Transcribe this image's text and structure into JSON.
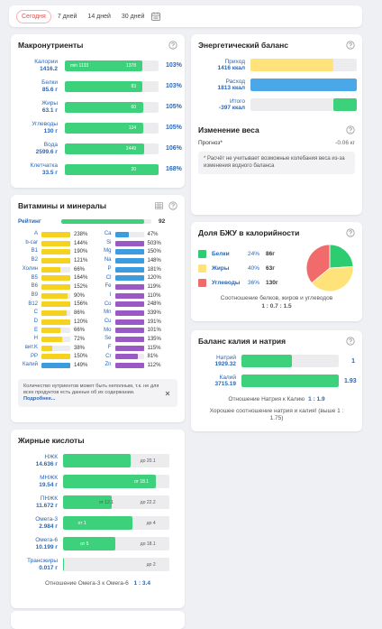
{
  "tabs": {
    "items": [
      "Сегодня",
      "7 дней",
      "14 дней",
      "30 дней"
    ],
    "active": 0
  },
  "macronutrients": {
    "title": "Макронутриенты",
    "rows": [
      {
        "name": "Калории",
        "amount": "1416.2",
        "inner_left": "min 1133",
        "inner_right": "1378",
        "percent": {
          "value": 103,
          "label": "103%"
        }
      },
      {
        "name": "Белки",
        "amount": "85.6 г",
        "inner_right": "83",
        "percent": {
          "value": 103,
          "label": "103%"
        }
      },
      {
        "name": "Жиры",
        "amount": "63.1 г",
        "inner_right": "60",
        "percent": {
          "value": 105,
          "label": "105%"
        }
      },
      {
        "name": "Углеводы",
        "amount": "130 г",
        "inner_right": "124",
        "percent": {
          "value": 105,
          "label": "105%"
        }
      },
      {
        "name": "Вода",
        "amount": "2599.6 г",
        "inner_right": "2449",
        "percent": {
          "value": 106,
          "label": "106%"
        }
      },
      {
        "name": "Клетчатка",
        "amount": "33.5 г",
        "inner_right": "20",
        "percent": {
          "value": 168,
          "label": "168%"
        }
      }
    ]
  },
  "vitamins": {
    "title": "Витамины и минералы",
    "rating": {
      "name": "Рейтинг",
      "value": 92,
      "color": "#3dd17c"
    },
    "left": [
      {
        "name": "A",
        "value": 238,
        "label": "238%",
        "color": "#f5d21f"
      },
      {
        "name": "b-car",
        "value": 144,
        "label": "144%",
        "color": "#f5d21f"
      },
      {
        "name": "B1",
        "value": 190,
        "label": "190%",
        "color": "#f5d21f"
      },
      {
        "name": "B2",
        "value": 121,
        "label": "121%",
        "color": "#f5d21f"
      },
      {
        "name": "Холин",
        "value": 66,
        "label": "66%",
        "color": "#f5d21f"
      },
      {
        "name": "B5",
        "value": 164,
        "label": "164%",
        "color": "#f5d21f"
      },
      {
        "name": "B6",
        "value": 152,
        "label": "152%",
        "color": "#f5d21f"
      },
      {
        "name": "B9",
        "value": 90,
        "label": "90%",
        "color": "#f5d21f"
      },
      {
        "name": "B12",
        "value": 156,
        "label": "156%",
        "color": "#f5d21f"
      },
      {
        "name": "C",
        "value": 86,
        "label": "86%",
        "color": "#f5d21f"
      },
      {
        "name": "D",
        "value": 120,
        "label": "120%",
        "color": "#f5d21f"
      },
      {
        "name": "E",
        "value": 66,
        "label": "66%",
        "color": "#f5d21f"
      },
      {
        "name": "H",
        "value": 72,
        "label": "72%",
        "color": "#f5d21f"
      },
      {
        "name": "вит.K",
        "value": 38,
        "label": "38%",
        "color": "#f5d21f"
      },
      {
        "name": "PP",
        "value": 150,
        "label": "150%",
        "color": "#f5d21f"
      },
      {
        "name": "Калий",
        "value": 149,
        "label": "149%",
        "color": "#3b9de0"
      }
    ],
    "right": [
      {
        "name": "Ca",
        "value": 47,
        "label": "47%",
        "color": "#3b9de0"
      },
      {
        "name": "Si",
        "value": 503,
        "label": "503%",
        "color": "#9b59c6"
      },
      {
        "name": "Mg",
        "value": 150,
        "label": "150%",
        "color": "#3b9de0"
      },
      {
        "name": "Na",
        "value": 148,
        "label": "148%",
        "color": "#3b9de0"
      },
      {
        "name": "P",
        "value": 181,
        "label": "181%",
        "color": "#3b9de0"
      },
      {
        "name": "Cl",
        "value": 120,
        "label": "120%",
        "color": "#3b9de0"
      },
      {
        "name": "Fe",
        "value": 119,
        "label": "119%",
        "color": "#9b59c6"
      },
      {
        "name": "I",
        "value": 110,
        "label": "110%",
        "color": "#9b59c6"
      },
      {
        "name": "Co",
        "value": 248,
        "label": "248%",
        "color": "#9b59c6"
      },
      {
        "name": "Mn",
        "value": 339,
        "label": "339%",
        "color": "#9b59c6"
      },
      {
        "name": "Cu",
        "value": 191,
        "label": "191%",
        "color": "#9b59c6"
      },
      {
        "name": "Mo",
        "value": 101,
        "label": "101%",
        "color": "#9b59c6"
      },
      {
        "name": "Se",
        "value": 135,
        "label": "135%",
        "color": "#9b59c6"
      },
      {
        "name": "F",
        "value": 115,
        "label": "115%",
        "color": "#9b59c6"
      },
      {
        "name": "Cr",
        "value": 81,
        "label": "81%",
        "color": "#9b59c6"
      },
      {
        "name": "Zn",
        "value": 112,
        "label": "112%",
        "color": "#9b59c6"
      }
    ],
    "note": "Количество нутриентов может быть неполным, т.к. не для всех продуктов есть данные об их содержании.",
    "note_link": "Подробнее..."
  },
  "fatty_acids": {
    "title": "Жирные кислоты",
    "rows": [
      {
        "name": "НЖК",
        "amount": {
          "value": 14.636,
          "label": "14.636 г"
        },
        "max": {
          "value": 20.1,
          "label": "до 20.1"
        }
      },
      {
        "name": "МНЖК",
        "amount": {
          "value": 19.54,
          "label": "19.54 г"
        },
        "min": {
          "value": 18.1,
          "label": "от 18.1"
        }
      },
      {
        "name": "ПНЖК",
        "amount": {
          "value": 11.672,
          "label": "11.672 г"
        },
        "min": {
          "value": 12.1,
          "label": "от 12.1"
        },
        "max": {
          "value": 22.2,
          "label": "до 22.2"
        }
      },
      {
        "name": "Омега-3",
        "amount": {
          "value": 2.984,
          "label": "2.984 г"
        },
        "min": {
          "value": 1,
          "label": "от 1"
        },
        "max": {
          "value": 4,
          "label": "до 4"
        }
      },
      {
        "name": "Омега-6",
        "amount": {
          "value": 10.199,
          "label": "10.199 г"
        },
        "min": {
          "value": 5,
          "label": "от 5"
        },
        "max": {
          "value": 18.1,
          "label": "до 18.1"
        }
      },
      {
        "name": "Трансжиры",
        "amount": {
          "value": 0.017,
          "label": "0.017 г"
        },
        "max": {
          "value": 2,
          "label": "до 2"
        }
      }
    ],
    "ratio_text": "Отношение Омега-3 к Омега-6",
    "ratio": "1 : 3.4"
  },
  "energy": {
    "title": "Энергетический баланс",
    "rows": [
      {
        "name": "Приход",
        "amount": {
          "value": 1416,
          "label": "1416 ккал"
        },
        "color": "#ffe27a"
      },
      {
        "name": "Расход",
        "amount": {
          "value": 1813,
          "label": "1813 ккал"
        },
        "color": "#4aa8e8"
      },
      {
        "name": "Итого",
        "amount": {
          "value": -397,
          "label": "-397 ккал"
        },
        "color": "#3dd17c"
      }
    ],
    "weight_title": "Изменение веса",
    "forecast_label": "Прогноз*",
    "forecast_value": "-0.06 кг",
    "note": "* Расчёт не учитывает возможные колебания веса из-за изменения водного баланса"
  },
  "bzhu": {
    "title": "Доля БЖУ в калорийности",
    "items": [
      {
        "name": "Белки",
        "percent": {
          "value": 24,
          "label": "24%"
        },
        "grams": "86г",
        "color": "#2ecc71"
      },
      {
        "name": "Жиры",
        "percent": {
          "value": 40,
          "label": "40%"
        },
        "grams": "63г",
        "color": "#ffe27a"
      },
      {
        "name": "Углеводы",
        "percent": {
          "value": 36,
          "label": "36%"
        },
        "grams": "130г",
        "color": "#f26b6b"
      }
    ],
    "ratio_text": "Соотношение белков, жиров и углеводов",
    "ratio": "1 : 0.7 : 1.5"
  },
  "potassium": {
    "title": "Баланс калия и натрия",
    "rows": [
      {
        "name": "Натрий",
        "amount": {
          "value": 1929.32,
          "label": "1929.32"
        },
        "ratio": "1"
      },
      {
        "name": "Калий",
        "amount": {
          "value": 3715.19,
          "label": "3715.19"
        },
        "ratio": "1.93"
      }
    ],
    "ratio_text": "Отношение Натрия к Калию",
    "ratio": "1 : 1.9",
    "verdict": "Хорошее соотношение натрия и калия! (выше 1 : 1.75)"
  }
}
